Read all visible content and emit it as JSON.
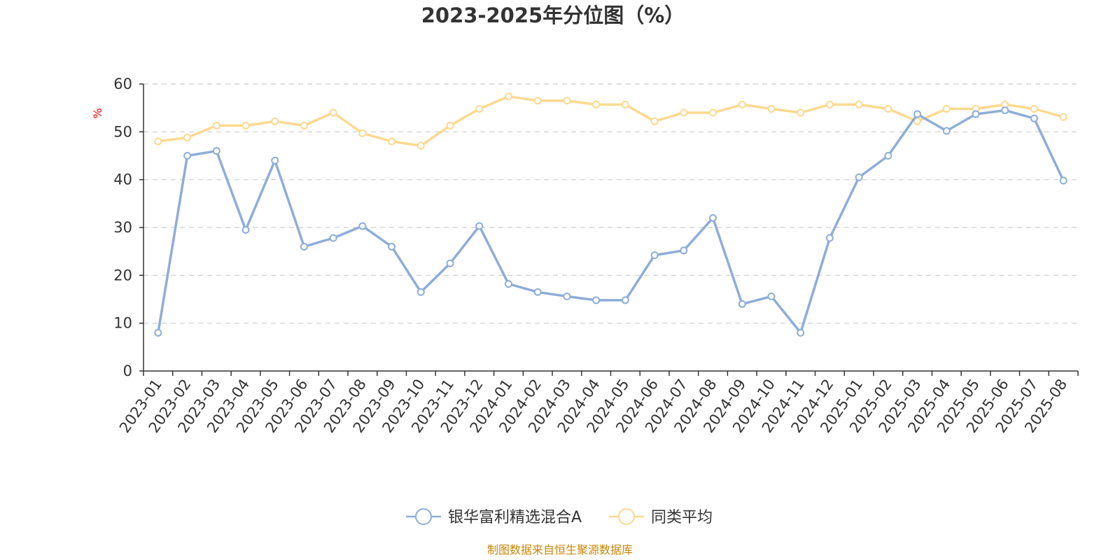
{
  "chart_data": {
    "type": "line",
    "title": "2023-2025年分位图（%）",
    "ylabel": "%",
    "ylim": [
      0,
      60
    ],
    "yticks": [
      0,
      10,
      20,
      30,
      40,
      50,
      60
    ],
    "grid": true,
    "legend_position": "bottom",
    "categories": [
      "2023-01",
      "2023-02",
      "2023-03",
      "2023-04",
      "2023-05",
      "2023-06",
      "2023-07",
      "2023-08",
      "2023-09",
      "2023-10",
      "2023-11",
      "2023-12",
      "2024-01",
      "2024-02",
      "2024-03",
      "2024-04",
      "2024-05",
      "2024-06",
      "2024-07",
      "2024-08",
      "2024-09",
      "2024-10",
      "2024-11",
      "2024-12",
      "2025-01",
      "2025-02",
      "2025-03",
      "2025-04",
      "2025-05",
      "2025-06",
      "2025-07",
      "2025-08"
    ],
    "series": [
      {
        "name": "银华富利精选混合A",
        "color": "#8eadd8",
        "values": [
          8,
          45,
          46,
          29.5,
          44,
          26,
          27.8,
          30.3,
          26,
          16.5,
          22.5,
          30.3,
          18.2,
          16.5,
          15.6,
          14.8,
          14.8,
          24.2,
          25.2,
          32,
          14,
          15.6,
          8,
          27.8,
          40.5,
          45,
          53.7,
          50.2,
          53.7,
          54.5,
          52.8,
          39.8
        ]
      },
      {
        "name": "同类平均",
        "color": "#fbd98f",
        "values": [
          48,
          48.8,
          51.3,
          51.3,
          52.2,
          51.3,
          54,
          49.7,
          48,
          47.1,
          51.3,
          54.8,
          57.4,
          56.5,
          56.5,
          55.7,
          55.7,
          52.2,
          54,
          54,
          55.7,
          54.8,
          54,
          55.7,
          55.7,
          54.8,
          52.2,
          54.8,
          54.8,
          55.7,
          54.8,
          53.1
        ]
      }
    ]
  },
  "source_note": "制图数据来自恒生聚源数据库"
}
